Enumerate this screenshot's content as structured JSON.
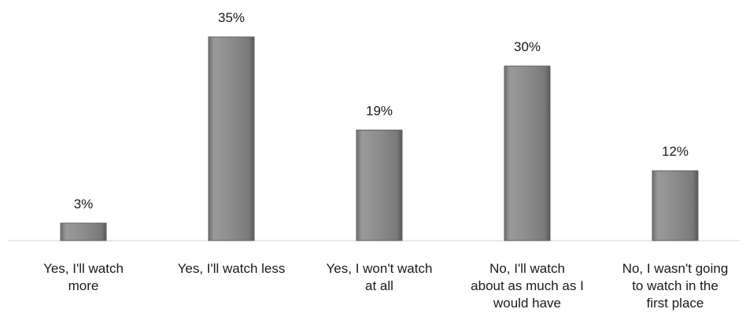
{
  "chart_data": {
    "type": "bar",
    "categories": [
      [
        "Yes, I'll watch",
        "more"
      ],
      [
        "Yes, I'll watch less"
      ],
      [
        "Yes, I won't watch",
        "at all"
      ],
      [
        "No, I'll watch",
        "about as much as I",
        "would have"
      ],
      [
        "No, I wasn't going",
        "to watch in the",
        "first place"
      ]
    ],
    "values": [
      3,
      35,
      19,
      30,
      12
    ],
    "value_labels": [
      "3%",
      "35%",
      "19%",
      "30%",
      "12%"
    ],
    "unit": "%",
    "ylim": [
      0,
      35
    ],
    "bar_color": "#8c8c8c",
    "grid": false,
    "legend": "none"
  }
}
